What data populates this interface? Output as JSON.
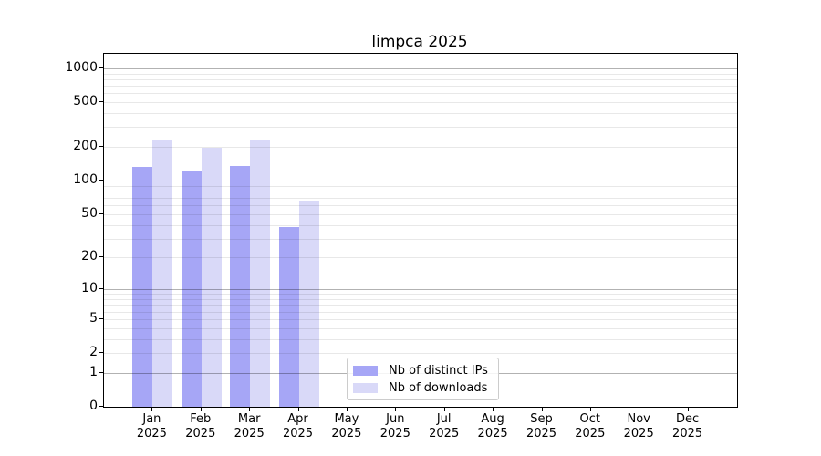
{
  "chart_data": {
    "type": "bar",
    "title": "limpca 2025",
    "categories": [
      "Jan",
      "Feb",
      "Mar",
      "Apr",
      "May",
      "Jun",
      "Jul",
      "Aug",
      "Sep",
      "Oct",
      "Nov",
      "Dec"
    ],
    "year_label": "2025",
    "series": [
      {
        "name": "Nb of distinct IPs",
        "color": "#a6a6f6",
        "values": [
          132,
          121,
          136,
          38,
          0,
          0,
          0,
          0,
          0,
          0,
          0,
          0
        ]
      },
      {
        "name": "Nb of downloads",
        "color": "#d9d9f8",
        "values": [
          231,
          197,
          231,
          66,
          0,
          0,
          0,
          0,
          0,
          0,
          0,
          0
        ]
      }
    ],
    "yscale": "log1p",
    "yticks": [
      0,
      1,
      2,
      5,
      10,
      20,
      50,
      100,
      200,
      500,
      1000
    ],
    "ytick_labels": [
      "0",
      "1",
      "2",
      "5",
      "10",
      "20",
      "50",
      "100",
      "200",
      "500",
      "1000"
    ],
    "ylim": [
      0,
      1370
    ],
    "grid": {
      "on": true,
      "major_color": "#b3b3b3",
      "minor_color": "#e9e9e9",
      "majors": [
        1,
        10,
        100,
        1000
      ]
    },
    "legend": {
      "position": "inside-lower-center",
      "entries": [
        "Nb of distinct IPs",
        "Nb of downloads"
      ]
    }
  }
}
